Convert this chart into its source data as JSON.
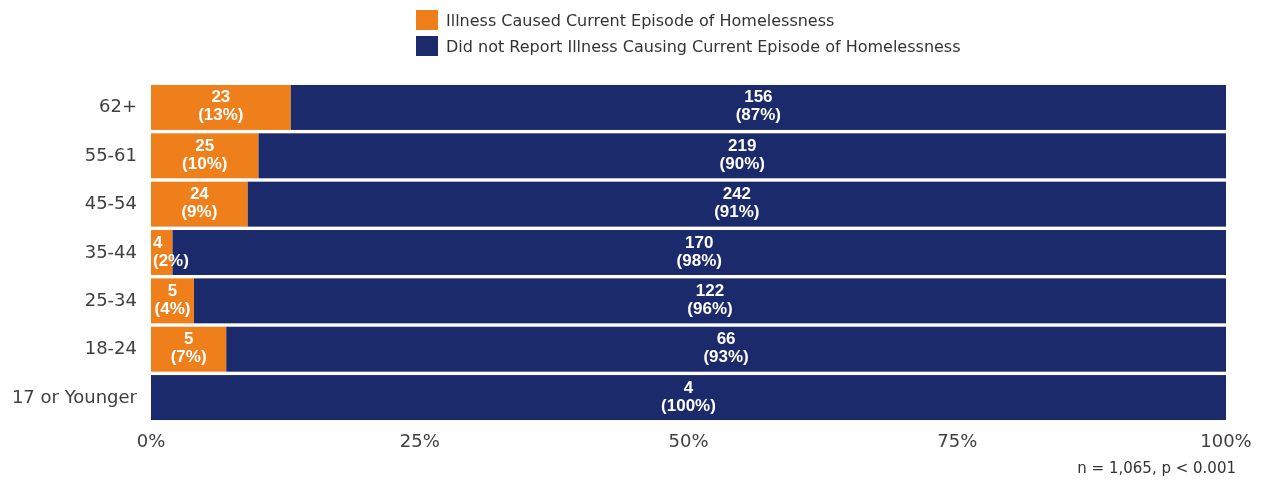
{
  "chart_data": {
    "type": "bar",
    "orientation": "horizontal",
    "stacked": true,
    "categories": [
      "62+",
      "55-61",
      "45-54",
      "35-44",
      "25-34",
      "18-24",
      "17 or Younger"
    ],
    "series": [
      {
        "name": "Illness Caused Current Episode of Homelessness",
        "color": "#ef7f1a",
        "values": [
          13,
          10,
          9,
          2,
          4,
          7,
          0
        ],
        "value_labels": [
          "23\n(13%)",
          "25\n(10%)",
          "24\n(9%)",
          "4\n(2%)",
          "5\n(4%)",
          "5\n(7%)",
          null
        ]
      },
      {
        "name": "Did not Report Illness Causing Current Episode of Homelessness",
        "color": "#1b2a6a",
        "values": [
          87,
          90,
          91,
          98,
          96,
          93,
          100
        ],
        "value_labels": [
          "156\n(87%)",
          "219\n(90%)",
          "242\n(91%)",
          "170\n(98%)",
          "122\n(96%)",
          "66\n(93%)",
          "4\n(100%)"
        ]
      }
    ],
    "xlim": [
      0,
      100
    ],
    "xticks": [
      {
        "value": 0,
        "label": "0%"
      },
      {
        "value": 25,
        "label": "25%"
      },
      {
        "value": 50,
        "label": "50%"
      },
      {
        "value": 75,
        "label": "75%"
      },
      {
        "value": 100,
        "label": "100%"
      }
    ],
    "legend": "top",
    "annotations": [
      "n = 1,065, p < 0.001"
    ]
  }
}
